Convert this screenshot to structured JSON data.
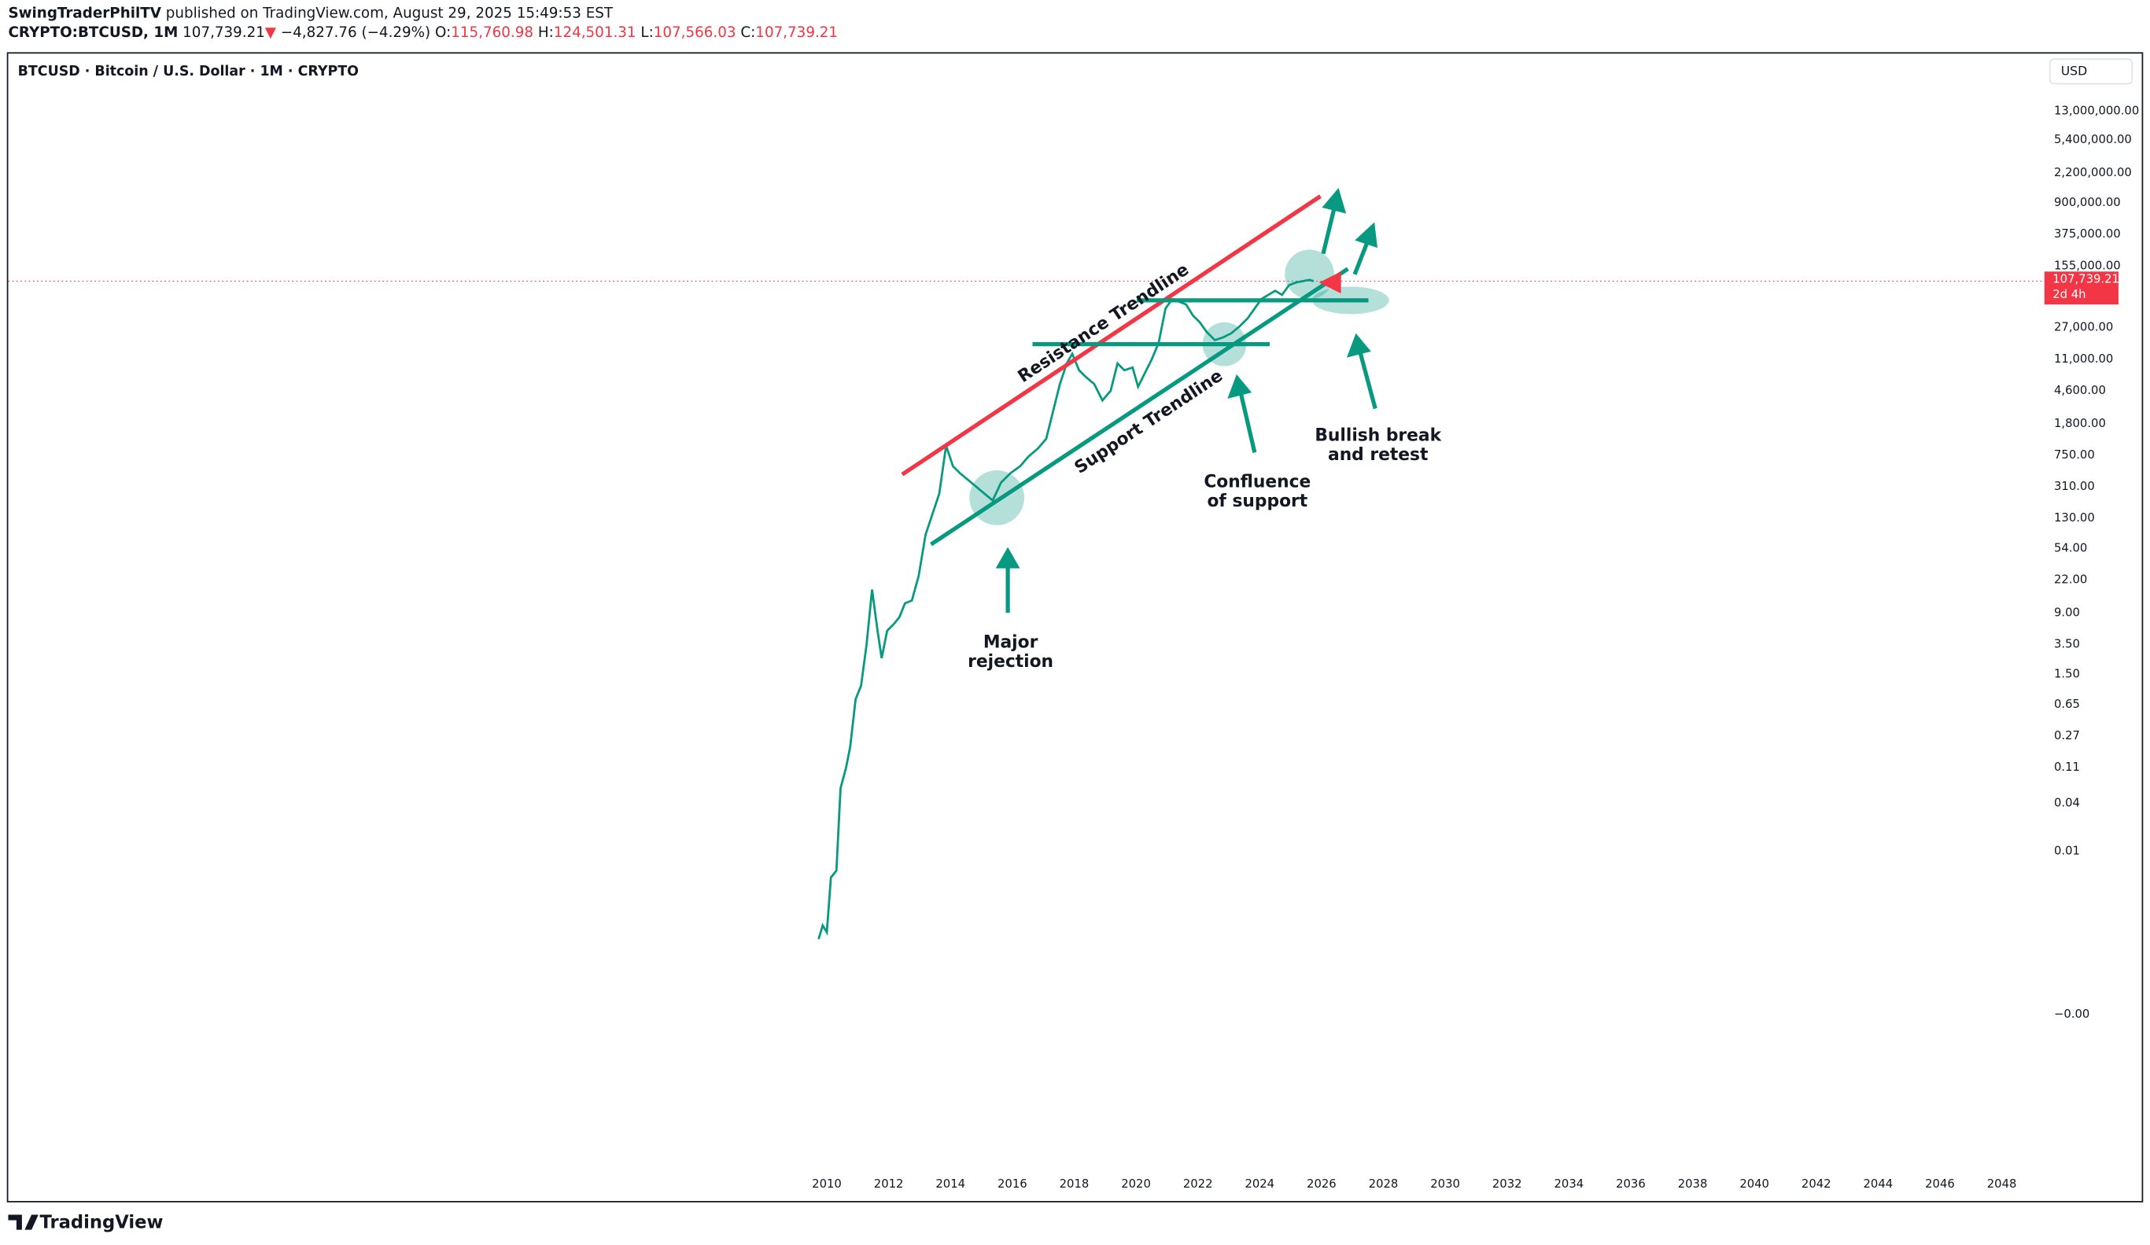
{
  "header": {
    "author": "SwingTraderPhilTV",
    "published": "published on TradingView.com, August 29, 2025 15:49:53 EST",
    "symbol": "CRYPTO:BTCUSD, 1M",
    "last": "107,739.21",
    "arrow": "▼",
    "change": "−4,827.76 (−4.29%)",
    "open_label": "O:",
    "open": "115,760.98",
    "high_label": "H:",
    "high": "124,501.31",
    "low_label": "L:",
    "low": "107,566.03",
    "close_label": "C:",
    "close": "107,739.21"
  },
  "chart": {
    "title": "BTCUSD · Bitcoin / U.S. Dollar · 1M · CRYPTO",
    "currency": "USD",
    "y_axis": [
      "13,000,000.00",
      "5,400,000.00",
      "2,200,000.00",
      "900,000.00",
      "375,000.00",
      "155,000.00",
      "27,000.00",
      "11,000.00",
      "4,600.00",
      "1,800.00",
      "750.00",
      "310.00",
      "130.00",
      "54.00",
      "22.00",
      "9.00",
      "3.50",
      "1.50",
      "0.65",
      "0.27",
      "0.11",
      "0.04",
      "0.01",
      "−0.00"
    ],
    "x_axis": [
      "2010",
      "2012",
      "2014",
      "2016",
      "2018",
      "2020",
      "2022",
      "2024",
      "2026",
      "2028",
      "2030",
      "2032",
      "2034",
      "2036",
      "2038",
      "2040",
      "2042",
      "2044",
      "2046",
      "2048"
    ],
    "price_tag": {
      "price": "107,739.21",
      "countdown": "2d 4h"
    },
    "annotations": {
      "resistance": "Resistance Trendline",
      "support": "Support Trendline",
      "major_rejection": [
        "Major",
        "rejection"
      ],
      "confluence": [
        "Confluence",
        "of support"
      ],
      "bullish": [
        "Bullish break",
        "and retest"
      ]
    }
  },
  "footer": {
    "brand": "TradingView"
  }
}
